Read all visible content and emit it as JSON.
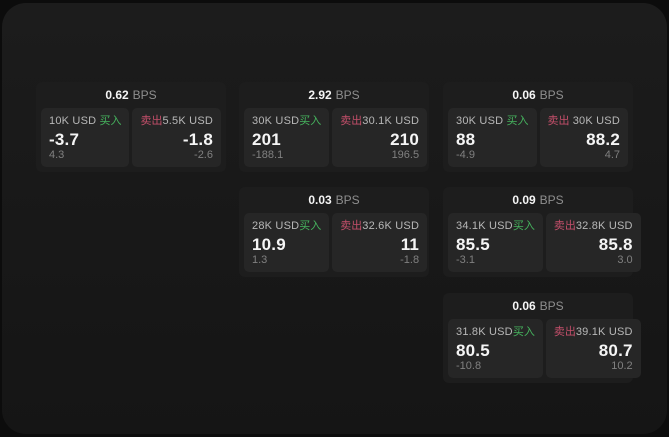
{
  "theme": {
    "background": "#0c0c0c",
    "window_bg": "#181818",
    "card_bg": "#1d1d1d",
    "tile_bg": "#262626",
    "buy_color": "#46b45e",
    "sell_color": "#c44f6a"
  },
  "cards": [
    {
      "bps_value": "0.62",
      "bps_unit": "BPS",
      "buy": {
        "amount": "10K USD",
        "label": "买入",
        "price": "-3.7",
        "delta": "4.3"
      },
      "sell": {
        "label": "卖出",
        "amount": "5.5K USD",
        "price": "-1.8",
        "delta": "-2.6"
      }
    },
    {
      "bps_value": "2.92",
      "bps_unit": "BPS",
      "buy": {
        "amount": "30K USD",
        "label": "买入",
        "price": "201",
        "delta": "-188.1"
      },
      "sell": {
        "label": "卖出",
        "amount": "30.1K USD",
        "price": "210",
        "delta": "196.5"
      }
    },
    {
      "bps_value": "0.06",
      "bps_unit": "BPS",
      "buy": {
        "amount": "30K USD",
        "label": "买入",
        "price": "88",
        "delta": "-4.9"
      },
      "sell": {
        "label": "卖出",
        "amount": "30K USD",
        "price": "88.2",
        "delta": "4.7"
      }
    },
    {
      "bps_value": "0.03",
      "bps_unit": "BPS",
      "buy": {
        "amount": "28K USD",
        "label": "买入",
        "price": "10.9",
        "delta": "1.3"
      },
      "sell": {
        "label": "卖出",
        "amount": "32.6K USD",
        "price": "11",
        "delta": "-1.8"
      }
    },
    {
      "bps_value": "0.09",
      "bps_unit": "BPS",
      "buy": {
        "amount": "34.1K USD",
        "label": "买入",
        "price": "85.5",
        "delta": "-3.1"
      },
      "sell": {
        "label": "卖出",
        "amount": "32.8K USD",
        "price": "85.8",
        "delta": "3.0"
      }
    },
    {
      "bps_value": "0.06",
      "bps_unit": "BPS",
      "buy": {
        "amount": "31.8K USD",
        "label": "买入",
        "price": "80.5",
        "delta": "-10.8"
      },
      "sell": {
        "label": "卖出",
        "amount": "39.1K USD",
        "price": "80.7",
        "delta": "10.2"
      }
    }
  ]
}
